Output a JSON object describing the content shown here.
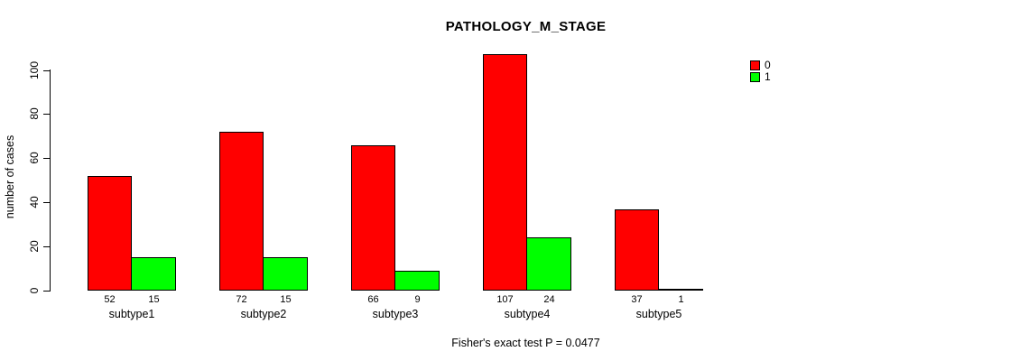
{
  "title": "PATHOLOGY_M_STAGE",
  "caption": "Fisher's exact test P = 0.0477",
  "colors": {
    "series0": "#FF0000",
    "series1": "#00FF00",
    "axis": "#000000",
    "background": "#FFFFFF"
  },
  "legend": {
    "items": [
      {
        "label": "0",
        "color": "#FF0000"
      },
      {
        "label": "1",
        "color": "#00FF00"
      }
    ]
  },
  "chart_data": {
    "type": "bar",
    "title": "PATHOLOGY_M_STAGE",
    "xlabel": "",
    "ylabel": "number of cases",
    "categories": [
      "subtype1",
      "subtype2",
      "subtype3",
      "subtype4",
      "subtype5"
    ],
    "series": [
      {
        "name": "0",
        "color": "#FF0000",
        "values": [
          52,
          72,
          66,
          107,
          37
        ]
      },
      {
        "name": "1",
        "color": "#00FF00",
        "values": [
          15,
          15,
          9,
          24,
          1
        ]
      }
    ],
    "bar_value_labels": [
      [
        52,
        15
      ],
      [
        72,
        15
      ],
      [
        66,
        9
      ],
      [
        107,
        24
      ],
      [
        37,
        1
      ]
    ],
    "ylim": [
      0,
      100
    ],
    "yticks": [
      0,
      20,
      40,
      60,
      80,
      100
    ],
    "grid": false,
    "legend_position": "top-right",
    "annotation": "Fisher's exact test P = 0.0477"
  }
}
